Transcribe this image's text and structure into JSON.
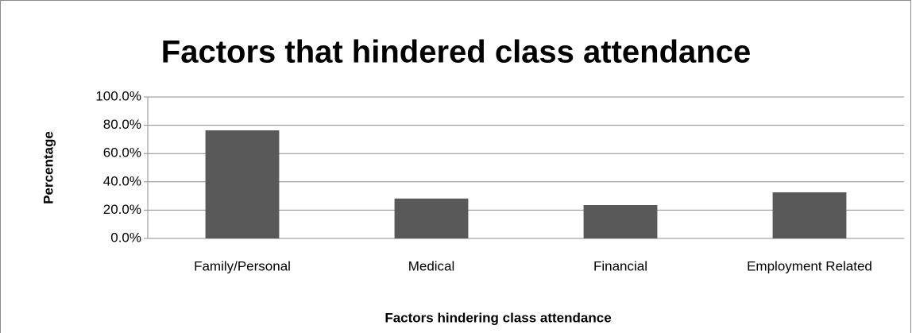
{
  "chart_data": {
    "type": "bar",
    "title": "Factors that hindered class attendance",
    "x_label": "Factors hindering class attendance",
    "y_label": "Percentage",
    "categories": [
      "Family/Personal",
      "Medical",
      "Financial",
      "Employment Related"
    ],
    "values": [
      76.4,
      28.2,
      23.6,
      32.6
    ],
    "color": "#595959",
    "ylim": [
      0,
      100
    ],
    "yticks": [
      {
        "value": 0,
        "label": "0.0%"
      },
      {
        "value": 20,
        "label": "20.0%"
      },
      {
        "value": 40,
        "label": "40.0%"
      },
      {
        "value": 60,
        "label": "60.0%"
      },
      {
        "value": 80,
        "label": "80.0%"
      },
      {
        "value": 100,
        "label": "100.0%"
      }
    ],
    "grid": true
  }
}
